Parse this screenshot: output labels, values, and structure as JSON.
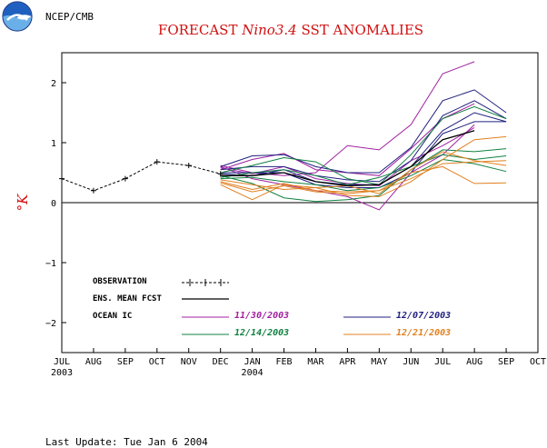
{
  "header": {
    "agency": "NCEP/CMB",
    "title_prefix": "FORECAST ",
    "title_italic": "Nino3.4",
    "title_suffix": " SST ANOMALIES"
  },
  "footer": {
    "last_update": "Last Update: Tue Jan 6 2004"
  },
  "colors": {
    "title": "#d01010",
    "observation": "#000000",
    "ens_mean": "#000000",
    "ic_1130": "#a020a0",
    "ic_1207": "#202080",
    "ic_1214": "#108040",
    "ic_1221": "#e08020"
  },
  "chart_data": {
    "type": "line",
    "title": "FORECAST Nino3.4 SST ANOMALIES",
    "ylabel": "°K",
    "xlabel": "",
    "x_categories": [
      "JUL",
      "AUG",
      "SEP",
      "OCT",
      "NOV",
      "DEC",
      "JAN",
      "FEB",
      "MAR",
      "APR",
      "MAY",
      "JUN",
      "JUL",
      "AUG",
      "SEP",
      "OCT"
    ],
    "year_labels": [
      {
        "at": "JUL",
        "text": "2003"
      },
      {
        "at": "JAN",
        "text": "2004"
      }
    ],
    "ylim": [
      -2.5,
      2.5
    ],
    "yticks": [
      -2,
      -1,
      0,
      1,
      2
    ],
    "zero_line": true,
    "legend": {
      "placement": "bottom-left",
      "observation_label": "OBSERVATION",
      "ens_mean_label": "ENS. MEAN FCST",
      "ocean_ic_label": "OCEAN IC",
      "ic_labels": [
        "11/30/2003",
        "12/07/2003",
        "12/14/2003",
        "12/21/2003"
      ]
    },
    "observation": {
      "name": "OBSERVATION",
      "x": [
        0,
        1,
        2,
        3,
        4,
        5
      ],
      "values": [
        0.4,
        0.2,
        0.4,
        0.68,
        0.62,
        0.48
      ]
    },
    "ens_mean": {
      "name": "ENS. MEAN FCST",
      "x": [
        5,
        6,
        7,
        8,
        9,
        10,
        11,
        12,
        13
      ],
      "values": [
        0.45,
        0.45,
        0.5,
        0.35,
        0.28,
        0.3,
        0.6,
        1.05,
        1.2
      ]
    },
    "ensemble_groups": [
      {
        "name": "11/30/2003",
        "color_key": "ic_1130",
        "members": [
          [
            0.62,
            0.5,
            0.45,
            0.5,
            0.95,
            0.88,
            1.3,
            2.15,
            2.35
          ],
          [
            0.6,
            0.4,
            0.3,
            0.2,
            0.1,
            -0.12,
            0.5,
            0.8,
            1.3
          ],
          [
            0.55,
            0.72,
            0.82,
            0.55,
            0.5,
            0.45,
            0.9,
            1.4,
            1.65
          ],
          [
            0.58,
            0.48,
            0.6,
            0.4,
            0.32,
            0.28,
            0.7,
            0.95,
            1.25
          ]
        ]
      },
      {
        "name": "12/07/2003",
        "color_key": "ic_1207",
        "members": [
          [
            0.6,
            0.78,
            0.8,
            0.6,
            0.5,
            0.5,
            0.92,
            1.7,
            1.88,
            1.5
          ],
          [
            0.55,
            0.6,
            0.6,
            0.45,
            0.38,
            0.35,
            0.7,
            1.45,
            1.7,
            1.4
          ],
          [
            0.5,
            0.5,
            0.5,
            0.3,
            0.25,
            0.25,
            0.5,
            1.15,
            1.35,
            1.35
          ],
          [
            0.48,
            0.45,
            0.55,
            0.35,
            0.3,
            0.3,
            0.6,
            1.2,
            1.5,
            1.35
          ]
        ]
      },
      {
        "name": "12/14/2003",
        "color_key": "ic_1214",
        "members": [
          [
            0.5,
            0.62,
            0.75,
            0.68,
            0.4,
            0.3,
            0.8,
            1.4,
            1.6,
            1.4
          ],
          [
            0.45,
            0.32,
            0.08,
            0.02,
            0.05,
            0.12,
            0.55,
            0.88,
            0.85,
            0.9
          ],
          [
            0.42,
            0.5,
            0.55,
            0.45,
            0.3,
            0.42,
            0.6,
            0.8,
            0.72,
            0.78
          ],
          [
            0.4,
            0.42,
            0.35,
            0.3,
            0.2,
            0.25,
            0.45,
            0.72,
            0.65,
            0.52
          ]
        ]
      },
      {
        "name": "12/21/2003",
        "color_key": "ic_1221",
        "members": [
          [
            0.3,
            0.05,
            0.3,
            0.25,
            0.12,
            0.1,
            0.35,
            0.72,
            1.05,
            1.1
          ],
          [
            0.35,
            0.22,
            0.32,
            0.2,
            0.18,
            0.2,
            0.5,
            0.6,
            0.32,
            0.33
          ],
          [
            0.38,
            0.3,
            0.22,
            0.25,
            0.28,
            0.15,
            0.55,
            0.85,
            0.7,
            0.62
          ],
          [
            0.33,
            0.18,
            0.28,
            0.18,
            0.15,
            0.2,
            0.4,
            0.65,
            0.68,
            0.7
          ]
        ]
      }
    ]
  }
}
